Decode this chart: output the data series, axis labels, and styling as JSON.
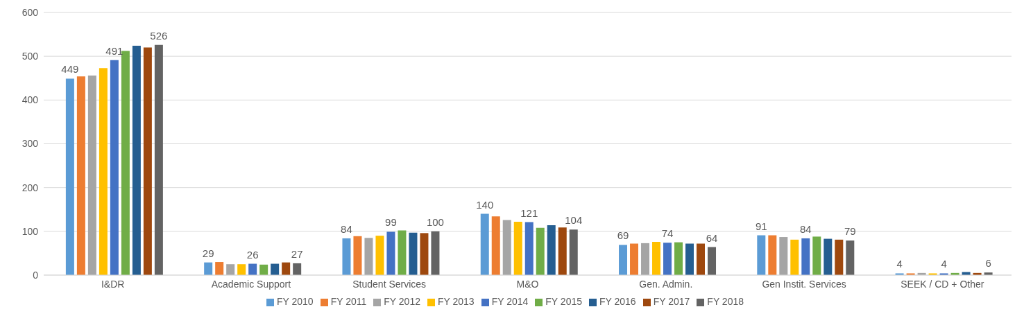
{
  "chart_data": {
    "type": "bar",
    "categories": [
      "I&DR",
      "Academic Support",
      "Student Services",
      "M&O",
      "Gen. Admin.",
      "Gen Instit. Services",
      "SEEK / CD + Other"
    ],
    "series": [
      {
        "name": "FY 2010",
        "color": "#5b9bd5",
        "values": [
          449,
          29,
          84,
          140,
          69,
          91,
          4
        ],
        "value_labels": [
          "449",
          "29",
          "84",
          "140",
          "69",
          "91",
          "4"
        ]
      },
      {
        "name": "FY 2011",
        "color": "#ed7d31",
        "values": [
          454,
          30,
          89,
          134,
          72,
          91,
          4
        ]
      },
      {
        "name": "FY 2012",
        "color": "#a5a5a5",
        "values": [
          456,
          25,
          85,
          126,
          73,
          87,
          5
        ]
      },
      {
        "name": "FY 2013",
        "color": "#ffc000",
        "values": [
          473,
          25,
          90,
          122,
          76,
          81,
          4
        ]
      },
      {
        "name": "FY 2014",
        "color": "#4472c4",
        "values": [
          491,
          26,
          99,
          121,
          74,
          84,
          4
        ],
        "value_labels": [
          "491",
          "26",
          "99",
          "121",
          "74",
          "84",
          "4"
        ]
      },
      {
        "name": "FY 2015",
        "color": "#70ad47",
        "values": [
          512,
          24,
          102,
          108,
          75,
          88,
          5
        ]
      },
      {
        "name": "FY 2016",
        "color": "#255e91",
        "values": [
          524,
          26,
          97,
          114,
          72,
          83,
          7
        ]
      },
      {
        "name": "FY 2017",
        "color": "#9e480e",
        "values": [
          520,
          29,
          96,
          109,
          72,
          81,
          5
        ]
      },
      {
        "name": "FY 2018",
        "color": "#636363",
        "values": [
          526,
          27,
          100,
          104,
          64,
          79,
          6
        ],
        "value_labels": [
          "526",
          "27",
          "100",
          "104",
          "64",
          "79",
          "6"
        ]
      }
    ],
    "ylim": [
      0,
      600
    ],
    "yticks": [
      0,
      100,
      200,
      300,
      400,
      500,
      600
    ],
    "grid": "y",
    "legend": "bottom"
  }
}
